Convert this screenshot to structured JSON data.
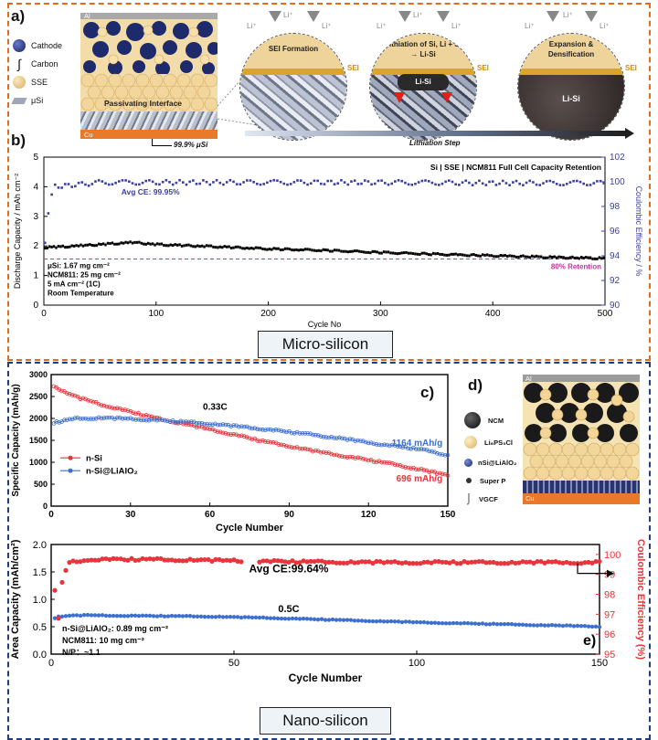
{
  "panel_a": {
    "label": "a)",
    "al_label": "Al",
    "cu_label": "Cu",
    "passivating": "Passivating Interface",
    "usi_pct": "99.9% μSi",
    "legend": [
      {
        "name": "Cathode",
        "color": "#1d2a6b"
      },
      {
        "name": "Carbon",
        "color": "#333333"
      },
      {
        "name": "SSE",
        "color": "#eccf90"
      },
      {
        "name": "μSi",
        "color": "#9ea6b8"
      }
    ],
    "steps": [
      {
        "title": "SEI Formation",
        "sei": "SEI",
        "inner": ""
      },
      {
        "title": "Lithiation of Si, Li + Si → Li-Si",
        "sei": "SEI",
        "inner": "Li-Si"
      },
      {
        "title": "Expansion & Densification",
        "sei": "SEI",
        "inner": "Li-Si"
      }
    ],
    "li_plus": "Li⁺",
    "lithiation_step": "Lithiation Step"
  },
  "panel_b": {
    "label": "b)",
    "title": "Si | SSE | NCM811 Full Cell Capacity Retention",
    "xlabel": "Cycle No",
    "ylabel_left": "Discharge Capacity / mAh cm⁻²",
    "ylabel_right": "Coulombic Efficiency / %",
    "avg_ce": "Avg CE: 99.95%",
    "retention": "80% Retention",
    "notes": [
      "μSi: 1.67 mg cm⁻²",
      "NCM811: 25 mg cm⁻²",
      "5 mA cm⁻² (1C)",
      "Room Temperature"
    ],
    "caption": "Micro-silicon"
  },
  "panel_c": {
    "label": "c)",
    "xlabel": "Cycle Number",
    "ylabel": "Specific Capacity (mAh/g)",
    "rate": "0.33C",
    "end_blue": "1164 mAh/g",
    "end_red": "696 mAh/g",
    "legend": [
      "n-Si",
      "n-Si@LiAlO₂"
    ]
  },
  "panel_d": {
    "label": "d)",
    "al_label": "Al",
    "cu_label": "Cu",
    "legend": [
      "NCM",
      "Li₆PS₅Cl",
      "nSi@LiAlO₂",
      "Super P",
      "VGCF"
    ]
  },
  "panel_e": {
    "label": "e)",
    "xlabel": "Cycle Number",
    "ylabel_left": "Area Capacity (mAh/cm²)",
    "ylabel_right": "Coulombic Efficiency (%)",
    "avg_ce": "Avg CE:99.64%",
    "rate": "0.5C",
    "notes": [
      "n-Si@LiAlO₂: 0.89 mg cm⁻²",
      "NCM811: 10 mg cm⁻²",
      "N/P：~1.1"
    ],
    "caption": "Nano-silicon"
  },
  "chart_data": [
    {
      "type": "scatter",
      "title": "Si | SSE | NCM811 Full Cell Capacity Retention",
      "xlabel": "Cycle No",
      "ylabel": "Discharge Capacity / mAh cm⁻²",
      "y2label": "Coulombic Efficiency / %",
      "xlim": [
        0,
        500
      ],
      "ylim": [
        0,
        5
      ],
      "y2lim": [
        90,
        102
      ],
      "xticks": [
        0,
        100,
        200,
        300,
        400,
        500
      ],
      "yticks": [
        0,
        1,
        2,
        3,
        4,
        5
      ],
      "y2ticks": [
        90,
        92,
        94,
        96,
        98,
        100,
        102
      ],
      "series": [
        {
          "name": "Discharge Capacity",
          "axis": "left",
          "color": "#000000",
          "x": [
            1,
            20,
            50,
            80,
            100,
            150,
            200,
            250,
            300,
            350,
            400,
            450,
            500
          ],
          "y": [
            1.95,
            1.98,
            2.05,
            2.12,
            2.05,
            1.98,
            1.9,
            1.85,
            1.78,
            1.72,
            1.67,
            1.62,
            1.58
          ]
        },
        {
          "name": "Coulombic Efficiency",
          "axis": "right",
          "color": "#3a3fa0",
          "x": [
            1,
            5,
            10,
            50,
            100,
            200,
            300,
            400,
            500
          ],
          "y": [
            95,
            98.5,
            99.6,
            99.95,
            99.95,
            99.95,
            99.95,
            99.9,
            99.9
          ]
        },
        {
          "name": "80% Retention",
          "axis": "left",
          "color": "#c0399a",
          "style": "dashed",
          "x": [
            0,
            500
          ],
          "y": [
            1.56,
            1.56
          ]
        }
      ]
    },
    {
      "type": "line",
      "xlabel": "Cycle Number",
      "ylabel": "Specific Capacity (mAh/g)",
      "xlim": [
        0,
        150
      ],
      "ylim": [
        0,
        3000
      ],
      "xticks": [
        0,
        30,
        60,
        90,
        120,
        150
      ],
      "yticks": [
        0,
        500,
        1000,
        1500,
        2000,
        2500,
        3000
      ],
      "series": [
        {
          "name": "n-Si",
          "color": "#e8343a",
          "x": [
            1,
            5,
            10,
            20,
            30,
            40,
            50,
            60,
            70,
            80,
            90,
            100,
            110,
            120,
            130,
            140,
            150
          ],
          "y": [
            2750,
            2600,
            2480,
            2300,
            2150,
            2000,
            1880,
            1750,
            1620,
            1480,
            1370,
            1250,
            1150,
            1050,
            950,
            830,
            696
          ]
        },
        {
          "name": "n-Si@LiAlO₂",
          "color": "#3c6fd0",
          "x": [
            1,
            5,
            10,
            20,
            30,
            40,
            50,
            60,
            70,
            80,
            90,
            100,
            110,
            120,
            130,
            140,
            150
          ],
          "y": [
            1900,
            1950,
            2000,
            2010,
            1990,
            1960,
            1920,
            1880,
            1820,
            1760,
            1690,
            1620,
            1540,
            1450,
            1370,
            1290,
            1164
          ]
        }
      ]
    },
    {
      "type": "scatter",
      "xlabel": "Cycle Number",
      "ylabel": "Area Capacity (mAh/cm²)",
      "y2label": "Coulombic Efficiency (%)",
      "xlim": [
        0,
        150
      ],
      "ylim": [
        0,
        2.0
      ],
      "y2lim": [
        95,
        100.5
      ],
      "xticks": [
        0,
        50,
        100,
        150
      ],
      "yticks": [
        0,
        0.5,
        1.0,
        1.5,
        2.0
      ],
      "y2ticks": [
        95,
        96,
        97,
        98,
        99,
        100
      ],
      "series": [
        {
          "name": "Area Capacity",
          "axis": "left",
          "color": "#3c6fd0",
          "x": [
            1,
            2,
            5,
            10,
            20,
            40,
            60,
            80,
            100,
            120,
            140,
            150
          ],
          "y": [
            0.66,
            0.68,
            0.7,
            0.71,
            0.7,
            0.69,
            0.66,
            0.62,
            0.58,
            0.55,
            0.52,
            0.5
          ]
        },
        {
          "name": "Coulombic Efficiency",
          "axis": "right",
          "color": "#e8343a",
          "x": [
            1,
            2,
            3,
            4,
            5,
            10,
            30,
            60,
            90,
            120,
            150
          ],
          "y": [
            98.2,
            96.8,
            98.6,
            99.2,
            99.6,
            99.75,
            99.75,
            99.65,
            99.6,
            99.6,
            99.6
          ]
        }
      ]
    }
  ]
}
